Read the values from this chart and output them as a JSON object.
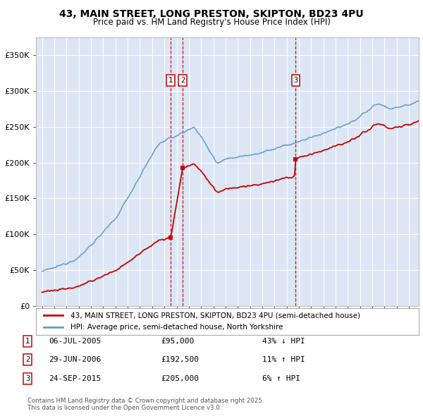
{
  "title_line1": "43, MAIN STREET, LONG PRESTON, SKIPTON, BD23 4PU",
  "title_line2": "Price paid vs. HM Land Registry's House Price Index (HPI)",
  "red_label": "43, MAIN STREET, LONG PRESTON, SKIPTON, BD23 4PU (semi-detached house)",
  "blue_label": "HPI: Average price, semi-detached house, North Yorkshire",
  "transactions": [
    {
      "num": 1,
      "date": "06-JUL-2005",
      "price": 95000,
      "pct": "43% ↓ HPI",
      "year": 2005.52
    },
    {
      "num": 2,
      "date": "29-JUN-2006",
      "price": 192500,
      "pct": "11% ↑ HPI",
      "year": 2006.49
    },
    {
      "num": 3,
      "date": "24-SEP-2015",
      "price": 205000,
      "pct": "6% ↑ HPI",
      "year": 2015.73
    }
  ],
  "copyright": "Contains HM Land Registry data © Crown copyright and database right 2025.\nThis data is licensed under the Open Government Licence v3.0.",
  "ylim": [
    0,
    375000
  ],
  "xlim_start": 1994.5,
  "xlim_end": 2025.8,
  "background_color": "#dce6f5",
  "red_color": "#cc0000",
  "blue_color": "#6699cc",
  "grid_color": "#ffffff"
}
